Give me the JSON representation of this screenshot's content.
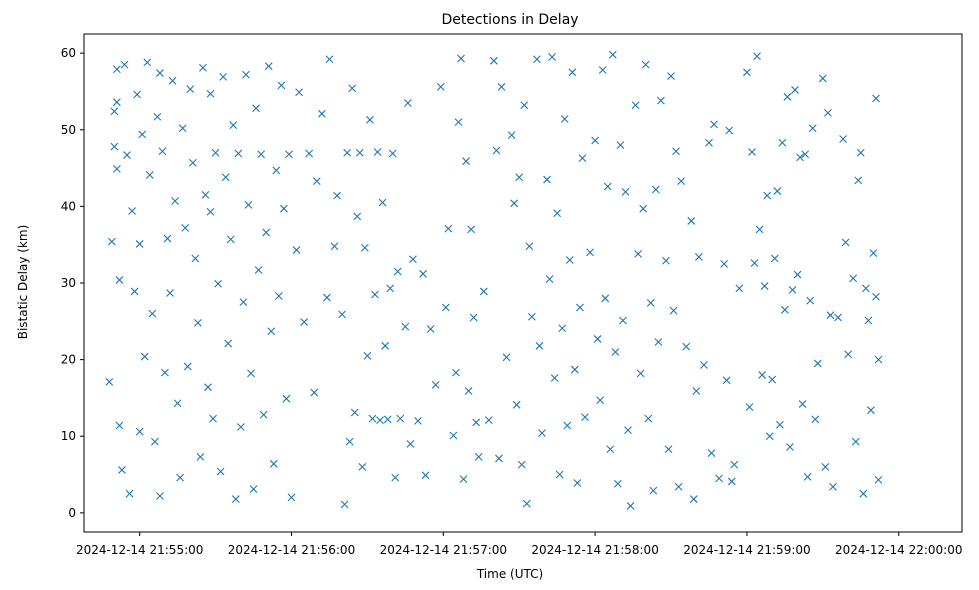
{
  "chart_data": {
    "type": "scatter",
    "title": "Detections in Delay",
    "xlabel": "Time (UTC)",
    "ylabel": "Bistatic Delay (km)",
    "marker": "x",
    "color": "#1f77b4",
    "x_unit": "UTC datetime",
    "xlim": [
      "2024-12-14 21:54:38",
      "2024-12-14 22:00:25"
    ],
    "ylim": [
      -2.5,
      62.5
    ],
    "xticks": [
      "2024-12-14 21:55:00",
      "2024-12-14 21:56:00",
      "2024-12-14 21:57:00",
      "2024-12-14 21:58:00",
      "2024-12-14 21:59:00",
      "2024-12-14 22:00:00"
    ],
    "yticks": [
      0,
      10,
      20,
      30,
      40,
      50,
      60
    ],
    "grid": false,
    "legend": "none",
    "points": [
      [
        "2024-12-14 21:54:48",
        17.1
      ],
      [
        "2024-12-14 21:54:49",
        35.4
      ],
      [
        "2024-12-14 21:54:50",
        47.8
      ],
      [
        "2024-12-14 21:54:50",
        52.4
      ],
      [
        "2024-12-14 21:54:51",
        57.9
      ],
      [
        "2024-12-14 21:54:51",
        53.6
      ],
      [
        "2024-12-14 21:54:51",
        44.9
      ],
      [
        "2024-12-14 21:54:52",
        30.4
      ],
      [
        "2024-12-14 21:54:52",
        11.4
      ],
      [
        "2024-12-14 21:54:53",
        5.6
      ],
      [
        "2024-12-14 21:54:54",
        58.5
      ],
      [
        "2024-12-14 21:54:55",
        46.7
      ],
      [
        "2024-12-14 21:54:56",
        2.5
      ],
      [
        "2024-12-14 21:54:57",
        39.4
      ],
      [
        "2024-12-14 21:54:58",
        28.9
      ],
      [
        "2024-12-14 21:54:59",
        54.6
      ],
      [
        "2024-12-14 21:55:00",
        10.6
      ],
      [
        "2024-12-14 21:55:00",
        35.1
      ],
      [
        "2024-12-14 21:55:01",
        49.4
      ],
      [
        "2024-12-14 21:55:02",
        20.4
      ],
      [
        "2024-12-14 21:55:03",
        58.8
      ],
      [
        "2024-12-14 21:55:04",
        44.1
      ],
      [
        "2024-12-14 21:55:05",
        26.0
      ],
      [
        "2024-12-14 21:55:06",
        9.3
      ],
      [
        "2024-12-14 21:55:07",
        51.7
      ],
      [
        "2024-12-14 21:55:08",
        2.2
      ],
      [
        "2024-12-14 21:55:08",
        57.4
      ],
      [
        "2024-12-14 21:55:09",
        47.2
      ],
      [
        "2024-12-14 21:55:10",
        18.3
      ],
      [
        "2024-12-14 21:55:11",
        35.8
      ],
      [
        "2024-12-14 21:55:12",
        28.7
      ],
      [
        "2024-12-14 21:55:13",
        56.4
      ],
      [
        "2024-12-14 21:55:14",
        40.7
      ],
      [
        "2024-12-14 21:55:15",
        14.3
      ],
      [
        "2024-12-14 21:55:16",
        4.6
      ],
      [
        "2024-12-14 21:55:17",
        50.2
      ],
      [
        "2024-12-14 21:55:18",
        37.2
      ],
      [
        "2024-12-14 21:55:19",
        19.1
      ],
      [
        "2024-12-14 21:55:20",
        55.3
      ],
      [
        "2024-12-14 21:55:21",
        45.7
      ],
      [
        "2024-12-14 21:55:22",
        33.2
      ],
      [
        "2024-12-14 21:55:23",
        24.8
      ],
      [
        "2024-12-14 21:55:24",
        7.3
      ],
      [
        "2024-12-14 21:55:25",
        58.1
      ],
      [
        "2024-12-14 21:55:26",
        41.5
      ],
      [
        "2024-12-14 21:55:27",
        16.4
      ],
      [
        "2024-12-14 21:55:28",
        54.7
      ],
      [
        "2024-12-14 21:55:28",
        39.3
      ],
      [
        "2024-12-14 21:55:29",
        12.3
      ],
      [
        "2024-12-14 21:55:30",
        47.0
      ],
      [
        "2024-12-14 21:55:31",
        29.9
      ],
      [
        "2024-12-14 21:55:32",
        5.4
      ],
      [
        "2024-12-14 21:55:33",
        56.9
      ],
      [
        "2024-12-14 21:55:34",
        43.8
      ],
      [
        "2024-12-14 21:55:35",
        22.1
      ],
      [
        "2024-12-14 21:55:36",
        35.7
      ],
      [
        "2024-12-14 21:55:37",
        50.6
      ],
      [
        "2024-12-14 21:55:38",
        1.8
      ],
      [
        "2024-12-14 21:55:39",
        46.9
      ],
      [
        "2024-12-14 21:55:40",
        11.2
      ],
      [
        "2024-12-14 21:55:41",
        27.5
      ],
      [
        "2024-12-14 21:55:42",
        57.2
      ],
      [
        "2024-12-14 21:55:43",
        40.2
      ],
      [
        "2024-12-14 21:55:44",
        18.2
      ],
      [
        "2024-12-14 21:55:45",
        3.1
      ],
      [
        "2024-12-14 21:55:46",
        52.8
      ],
      [
        "2024-12-14 21:55:47",
        31.7
      ],
      [
        "2024-12-14 21:55:48",
        46.8
      ],
      [
        "2024-12-14 21:55:49",
        12.8
      ],
      [
        "2024-12-14 21:55:50",
        36.6
      ],
      [
        "2024-12-14 21:55:51",
        58.3
      ],
      [
        "2024-12-14 21:55:52",
        23.7
      ],
      [
        "2024-12-14 21:55:53",
        6.4
      ],
      [
        "2024-12-14 21:55:54",
        44.7
      ],
      [
        "2024-12-14 21:55:55",
        28.3
      ],
      [
        "2024-12-14 21:55:56",
        55.8
      ],
      [
        "2024-12-14 21:55:57",
        39.7
      ],
      [
        "2024-12-14 21:55:58",
        14.9
      ],
      [
        "2024-12-14 21:55:59",
        46.8
      ],
      [
        "2024-12-14 21:56:00",
        2.0
      ],
      [
        "2024-12-14 21:56:02",
        34.3
      ],
      [
        "2024-12-14 21:56:03",
        54.9
      ],
      [
        "2024-12-14 21:56:05",
        24.9
      ],
      [
        "2024-12-14 21:56:07",
        46.9
      ],
      [
        "2024-12-14 21:56:09",
        15.7
      ],
      [
        "2024-12-14 21:56:10",
        43.3
      ],
      [
        "2024-12-14 21:56:12",
        52.1
      ],
      [
        "2024-12-14 21:56:14",
        28.1
      ],
      [
        "2024-12-14 21:56:15",
        59.2
      ],
      [
        "2024-12-14 21:56:17",
        34.8
      ],
      [
        "2024-12-14 21:56:18",
        41.4
      ],
      [
        "2024-12-14 21:56:20",
        25.9
      ],
      [
        "2024-12-14 21:56:21",
        1.1
      ],
      [
        "2024-12-14 21:56:22",
        47.0
      ],
      [
        "2024-12-14 21:56:23",
        9.3
      ],
      [
        "2024-12-14 21:56:24",
        55.4
      ],
      [
        "2024-12-14 21:56:25",
        13.1
      ],
      [
        "2024-12-14 21:56:26",
        38.7
      ],
      [
        "2024-12-14 21:56:27",
        47.0
      ],
      [
        "2024-12-14 21:56:28",
        6.0
      ],
      [
        "2024-12-14 21:56:29",
        34.6
      ],
      [
        "2024-12-14 21:56:30",
        20.5
      ],
      [
        "2024-12-14 21:56:31",
        51.3
      ],
      [
        "2024-12-14 21:56:32",
        12.3
      ],
      [
        "2024-12-14 21:56:33",
        28.5
      ],
      [
        "2024-12-14 21:56:34",
        47.1
      ],
      [
        "2024-12-14 21:56:35",
        12.1
      ],
      [
        "2024-12-14 21:56:36",
        40.5
      ],
      [
        "2024-12-14 21:56:37",
        21.8
      ],
      [
        "2024-12-14 21:56:38",
        12.2
      ],
      [
        "2024-12-14 21:56:39",
        29.3
      ],
      [
        "2024-12-14 21:56:40",
        46.9
      ],
      [
        "2024-12-14 21:56:41",
        4.6
      ],
      [
        "2024-12-14 21:56:42",
        31.5
      ],
      [
        "2024-12-14 21:56:43",
        12.3
      ],
      [
        "2024-12-14 21:56:45",
        24.3
      ],
      [
        "2024-12-14 21:56:46",
        53.5
      ],
      [
        "2024-12-14 21:56:47",
        9.0
      ],
      [
        "2024-12-14 21:56:48",
        33.1
      ],
      [
        "2024-12-14 21:56:50",
        12.0
      ],
      [
        "2024-12-14 21:56:52",
        31.2
      ],
      [
        "2024-12-14 21:56:53",
        4.9
      ],
      [
        "2024-12-14 21:56:55",
        24.0
      ],
      [
        "2024-12-14 21:56:57",
        16.7
      ],
      [
        "2024-12-14 21:56:59",
        55.6
      ],
      [
        "2024-12-14 21:57:01",
        26.8
      ],
      [
        "2024-12-14 21:57:02",
        37.1
      ],
      [
        "2024-12-14 21:57:04",
        10.1
      ],
      [
        "2024-12-14 21:57:05",
        18.3
      ],
      [
        "2024-12-14 21:57:06",
        51.0
      ],
      [
        "2024-12-14 21:57:07",
        59.3
      ],
      [
        "2024-12-14 21:57:08",
        4.4
      ],
      [
        "2024-12-14 21:57:09",
        45.9
      ],
      [
        "2024-12-14 21:57:10",
        15.9
      ],
      [
        "2024-12-14 21:57:11",
        37.0
      ],
      [
        "2024-12-14 21:57:12",
        25.5
      ],
      [
        "2024-12-14 21:57:13",
        11.8
      ],
      [
        "2024-12-14 21:57:14",
        7.3
      ],
      [
        "2024-12-14 21:57:16",
        28.9
      ],
      [
        "2024-12-14 21:57:18",
        12.1
      ],
      [
        "2024-12-14 21:57:20",
        59.0
      ],
      [
        "2024-12-14 21:57:21",
        47.3
      ],
      [
        "2024-12-14 21:57:22",
        7.1
      ],
      [
        "2024-12-14 21:57:23",
        55.6
      ],
      [
        "2024-12-14 21:57:25",
        20.3
      ],
      [
        "2024-12-14 21:57:27",
        49.3
      ],
      [
        "2024-12-14 21:57:28",
        40.4
      ],
      [
        "2024-12-14 21:57:29",
        14.1
      ],
      [
        "2024-12-14 21:57:30",
        43.8
      ],
      [
        "2024-12-14 21:57:31",
        6.3
      ],
      [
        "2024-12-14 21:57:32",
        53.2
      ],
      [
        "2024-12-14 21:57:33",
        1.2
      ],
      [
        "2024-12-14 21:57:34",
        34.8
      ],
      [
        "2024-12-14 21:57:35",
        25.6
      ],
      [
        "2024-12-14 21:57:37",
        59.2
      ],
      [
        "2024-12-14 21:57:38",
        21.8
      ],
      [
        "2024-12-14 21:57:39",
        10.4
      ],
      [
        "2024-12-14 21:57:41",
        43.5
      ],
      [
        "2024-12-14 21:57:42",
        30.5
      ],
      [
        "2024-12-14 21:57:43",
        59.5
      ],
      [
        "2024-12-14 21:57:44",
        17.6
      ],
      [
        "2024-12-14 21:57:45",
        39.1
      ],
      [
        "2024-12-14 21:57:46",
        5.0
      ],
      [
        "2024-12-14 21:57:47",
        24.1
      ],
      [
        "2024-12-14 21:57:48",
        51.4
      ],
      [
        "2024-12-14 21:57:49",
        11.4
      ],
      [
        "2024-12-14 21:57:50",
        33.0
      ],
      [
        "2024-12-14 21:57:51",
        57.5
      ],
      [
        "2024-12-14 21:57:52",
        18.7
      ],
      [
        "2024-12-14 21:57:53",
        3.9
      ],
      [
        "2024-12-14 21:57:54",
        26.8
      ],
      [
        "2024-12-14 21:57:55",
        46.3
      ],
      [
        "2024-12-14 21:57:56",
        12.5
      ],
      [
        "2024-12-14 21:57:58",
        34.0
      ],
      [
        "2024-12-14 21:58:00",
        48.6
      ],
      [
        "2024-12-14 21:58:01",
        22.7
      ],
      [
        "2024-12-14 21:58:02",
        14.7
      ],
      [
        "2024-12-14 21:58:03",
        57.8
      ],
      [
        "2024-12-14 21:58:04",
        28.0
      ],
      [
        "2024-12-14 21:58:05",
        42.6
      ],
      [
        "2024-12-14 21:58:06",
        8.3
      ],
      [
        "2024-12-14 21:58:07",
        59.8
      ],
      [
        "2024-12-14 21:58:08",
        21.0
      ],
      [
        "2024-12-14 21:58:09",
        3.8
      ],
      [
        "2024-12-14 21:58:10",
        48.0
      ],
      [
        "2024-12-14 21:58:11",
        25.1
      ],
      [
        "2024-12-14 21:58:12",
        41.9
      ],
      [
        "2024-12-14 21:58:13",
        10.8
      ],
      [
        "2024-12-14 21:58:14",
        0.9
      ],
      [
        "2024-12-14 21:58:16",
        53.2
      ],
      [
        "2024-12-14 21:58:17",
        33.8
      ],
      [
        "2024-12-14 21:58:18",
        18.2
      ],
      [
        "2024-12-14 21:58:19",
        39.7
      ],
      [
        "2024-12-14 21:58:20",
        58.5
      ],
      [
        "2024-12-14 21:58:21",
        12.3
      ],
      [
        "2024-12-14 21:58:22",
        27.4
      ],
      [
        "2024-12-14 21:58:23",
        2.9
      ],
      [
        "2024-12-14 21:58:24",
        42.2
      ],
      [
        "2024-12-14 21:58:25",
        22.3
      ],
      [
        "2024-12-14 21:58:26",
        53.8
      ],
      [
        "2024-12-14 21:58:28",
        32.9
      ],
      [
        "2024-12-14 21:58:29",
        8.3
      ],
      [
        "2024-12-14 21:58:30",
        57.0
      ],
      [
        "2024-12-14 21:58:31",
        26.4
      ],
      [
        "2024-12-14 21:58:32",
        47.2
      ],
      [
        "2024-12-14 21:58:33",
        3.4
      ],
      [
        "2024-12-14 21:58:34",
        43.3
      ],
      [
        "2024-12-14 21:58:36",
        21.7
      ],
      [
        "2024-12-14 21:58:38",
        38.1
      ],
      [
        "2024-12-14 21:58:39",
        1.8
      ],
      [
        "2024-12-14 21:58:40",
        15.9
      ],
      [
        "2024-12-14 21:58:41",
        33.4
      ],
      [
        "2024-12-14 21:58:43",
        19.3
      ],
      [
        "2024-12-14 21:58:45",
        48.3
      ],
      [
        "2024-12-14 21:58:46",
        7.8
      ],
      [
        "2024-12-14 21:58:47",
        50.7
      ],
      [
        "2024-12-14 21:58:49",
        4.5
      ],
      [
        "2024-12-14 21:58:51",
        32.5
      ],
      [
        "2024-12-14 21:58:52",
        17.3
      ],
      [
        "2024-12-14 21:58:53",
        49.9
      ],
      [
        "2024-12-14 21:58:54",
        4.1
      ],
      [
        "2024-12-14 21:58:55",
        6.3
      ],
      [
        "2024-12-14 21:58:57",
        29.3
      ],
      [
        "2024-12-14 21:59:00",
        57.5
      ],
      [
        "2024-12-14 21:59:01",
        13.8
      ],
      [
        "2024-12-14 21:59:02",
        47.1
      ],
      [
        "2024-12-14 21:59:03",
        32.6
      ],
      [
        "2024-12-14 21:59:04",
        59.6
      ],
      [
        "2024-12-14 21:59:05",
        37.0
      ],
      [
        "2024-12-14 21:59:06",
        18.0
      ],
      [
        "2024-12-14 21:59:07",
        29.6
      ],
      [
        "2024-12-14 21:59:08",
        41.4
      ],
      [
        "2024-12-14 21:59:09",
        10.0
      ],
      [
        "2024-12-14 21:59:10",
        17.4
      ],
      [
        "2024-12-14 21:59:11",
        33.2
      ],
      [
        "2024-12-14 21:59:12",
        42.0
      ],
      [
        "2024-12-14 21:59:13",
        11.5
      ],
      [
        "2024-12-14 21:59:14",
        48.3
      ],
      [
        "2024-12-14 21:59:15",
        26.5
      ],
      [
        "2024-12-14 21:59:16",
        54.3
      ],
      [
        "2024-12-14 21:59:17",
        8.6
      ],
      [
        "2024-12-14 21:59:18",
        29.1
      ],
      [
        "2024-12-14 21:59:19",
        55.2
      ],
      [
        "2024-12-14 21:59:20",
        31.1
      ],
      [
        "2024-12-14 21:59:21",
        46.4
      ],
      [
        "2024-12-14 21:59:22",
        14.2
      ],
      [
        "2024-12-14 21:59:23",
        46.8
      ],
      [
        "2024-12-14 21:59:24",
        4.7
      ],
      [
        "2024-12-14 21:59:25",
        27.7
      ],
      [
        "2024-12-14 21:59:26",
        50.2
      ],
      [
        "2024-12-14 21:59:27",
        12.2
      ],
      [
        "2024-12-14 21:59:28",
        19.5
      ],
      [
        "2024-12-14 21:59:30",
        56.7
      ],
      [
        "2024-12-14 21:59:31",
        6.0
      ],
      [
        "2024-12-14 21:59:32",
        52.2
      ],
      [
        "2024-12-14 21:59:33",
        25.8
      ],
      [
        "2024-12-14 21:59:34",
        3.4
      ],
      [
        "2024-12-14 21:59:36",
        25.5
      ],
      [
        "2024-12-14 21:59:38",
        48.8
      ],
      [
        "2024-12-14 21:59:39",
        35.3
      ],
      [
        "2024-12-14 21:59:40",
        20.7
      ],
      [
        "2024-12-14 21:59:42",
        30.6
      ],
      [
        "2024-12-14 21:59:43",
        9.3
      ],
      [
        "2024-12-14 21:59:44",
        43.4
      ],
      [
        "2024-12-14 21:59:45",
        47.0
      ],
      [
        "2024-12-14 21:59:46",
        2.5
      ],
      [
        "2024-12-14 21:59:47",
        29.3
      ],
      [
        "2024-12-14 21:59:48",
        25.1
      ],
      [
        "2024-12-14 21:59:49",
        13.4
      ],
      [
        "2024-12-14 21:59:50",
        33.9
      ],
      [
        "2024-12-14 21:59:51",
        54.1
      ],
      [
        "2024-12-14 21:59:51",
        28.2
      ],
      [
        "2024-12-14 21:59:52",
        4.3
      ],
      [
        "2024-12-14 21:59:52",
        20.0
      ]
    ]
  }
}
